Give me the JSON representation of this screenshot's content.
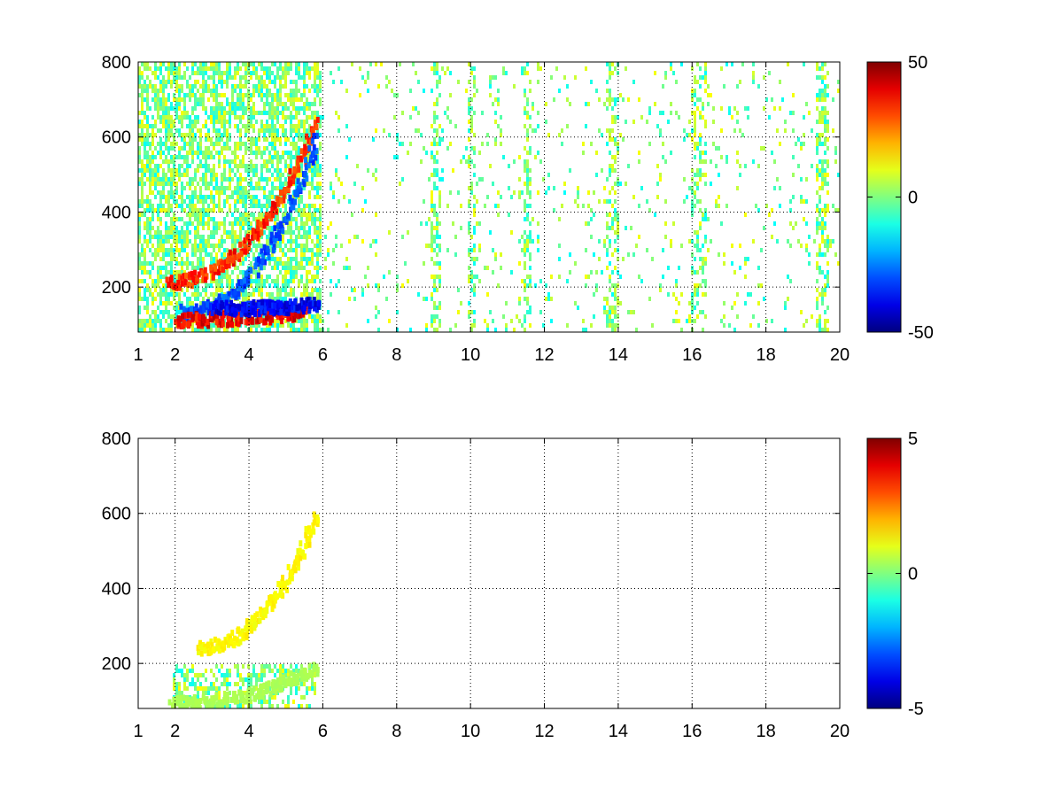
{
  "chart_data": [
    {
      "type": "heatmap",
      "title": "",
      "xlabel": "",
      "ylabel": "",
      "xlim": [
        1,
        20
      ],
      "ylim": [
        80,
        800
      ],
      "xticks": [
        1,
        2,
        4,
        6,
        8,
        10,
        12,
        14,
        16,
        18,
        20
      ],
      "yticks": [
        200,
        400,
        600,
        800
      ],
      "grid": true,
      "colormap": "jet",
      "colorbar": {
        "range": [
          -50,
          50
        ],
        "ticks": [
          50,
          0,
          -50
        ]
      },
      "features": [
        {
          "x0": 1.8,
          "x1": 5.8,
          "y0": 220,
          "y1": 640,
          "value": 40,
          "desc": "rising positive ridge"
        },
        {
          "x0": 2.2,
          "x1": 5.8,
          "y0": 140,
          "y1": 600,
          "value": -35,
          "desc": "rising negative ridge"
        },
        {
          "x0": 2.0,
          "x1": 5.5,
          "y0": 120,
          "y1": 140,
          "value": 45,
          "desc": "low positive band"
        },
        {
          "x0": 3.0,
          "x1": 5.8,
          "y0": 150,
          "y1": 160,
          "value": -45,
          "desc": "low negative band"
        }
      ]
    },
    {
      "type": "heatmap",
      "title": "",
      "xlabel": "",
      "ylabel": "",
      "xlim": [
        1,
        20
      ],
      "ylim": [
        80,
        800
      ],
      "xticks": [
        1,
        2,
        4,
        6,
        8,
        10,
        12,
        14,
        16,
        18,
        20
      ],
      "yticks": [
        200,
        400,
        600,
        800
      ],
      "grid": true,
      "colormap": "jet",
      "colorbar": {
        "range": [
          -5,
          5
        ],
        "ticks": [
          5,
          0,
          -5
        ]
      },
      "features": [
        {
          "x0": 2.6,
          "x1": 5.8,
          "y0": 250,
          "y1": 600,
          "value": 1.5,
          "desc": "rising ridge"
        },
        {
          "x0": 1.9,
          "x1": 5.8,
          "y0": 100,
          "y1": 200,
          "value": 0.5,
          "desc": "low band"
        }
      ]
    }
  ]
}
